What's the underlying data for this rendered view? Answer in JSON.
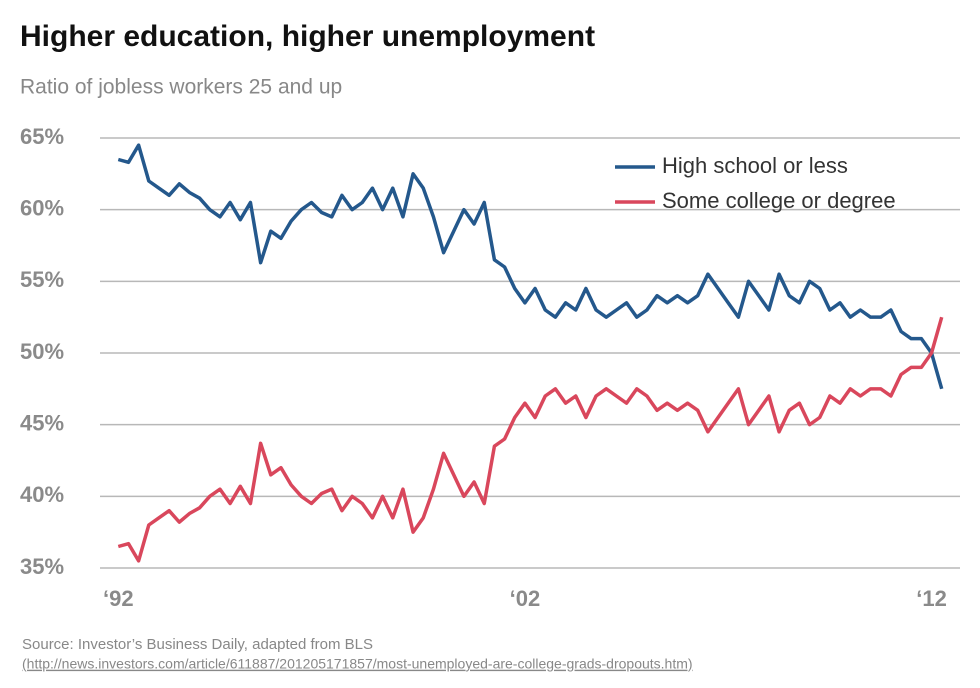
{
  "chart_data": {
    "type": "line",
    "title": "Higher education, higher unemployment",
    "subtitle": "Ratio of jobless workers 25 and up",
    "source": "Source: Investor’s Business Daily, adapted from BLS",
    "source_url": "(http://news.investors.com/article/611887/201205171857/most-unemployed-are-college-grads-dropouts.htm)",
    "x": [
      1992,
      1992.25,
      1992.5,
      1992.75,
      1993,
      1993.25,
      1993.5,
      1993.75,
      1994,
      1994.25,
      1994.5,
      1994.75,
      1995,
      1995.25,
      1995.5,
      1995.75,
      1996,
      1996.25,
      1996.5,
      1996.75,
      1997,
      1997.25,
      1997.5,
      1997.75,
      1998,
      1998.25,
      1998.5,
      1998.75,
      1999,
      1999.25,
      1999.5,
      1999.75,
      2000,
      2000.25,
      2000.5,
      2000.75,
      2001,
      2001.25,
      2001.5,
      2001.75,
      2002,
      2002.25,
      2002.5,
      2002.75,
      2003,
      2003.25,
      2003.5,
      2003.75,
      2004,
      2004.25,
      2004.5,
      2004.75,
      2005,
      2005.25,
      2005.5,
      2005.75,
      2006,
      2006.25,
      2006.5,
      2006.75,
      2007,
      2007.25,
      2007.5,
      2007.75,
      2008,
      2008.25,
      2008.5,
      2008.75,
      2009,
      2009.25,
      2009.5,
      2009.75,
      2010,
      2010.25,
      2010.5,
      2010.75,
      2011,
      2011.25,
      2011.5,
      2011.75,
      2012,
      2012.25
    ],
    "series": [
      {
        "name": "High school or less",
        "color": "#24588c",
        "values": [
          63.5,
          63.3,
          64.5,
          62,
          61.5,
          61,
          61.8,
          61.2,
          60.8,
          60,
          59.5,
          60.5,
          59.3,
          60.5,
          56.3,
          58.5,
          58,
          59.2,
          60,
          60.5,
          59.8,
          59.5,
          61,
          60,
          60.5,
          61.5,
          60,
          61.5,
          59.5,
          62.5,
          61.5,
          59.5,
          57,
          58.5,
          60,
          59,
          60.5,
          56.5,
          56,
          54.5,
          53.5,
          54.5,
          53,
          52.5,
          53.5,
          53,
          54.5,
          53,
          52.5,
          53,
          53.5,
          52.5,
          53,
          54,
          53.5,
          54,
          53.5,
          54,
          55.5,
          54.5,
          53.5,
          52.5,
          55,
          54,
          53,
          55.5,
          54,
          53.5,
          55,
          54.5,
          53,
          53.5,
          52.5,
          53,
          52.5,
          52.5,
          53,
          51.5,
          51,
          51,
          50,
          47.5
        ]
      },
      {
        "name": "Some college or degree",
        "color": "#d9475c",
        "values": [
          36.5,
          36.7,
          35.5,
          38,
          38.5,
          39,
          38.2,
          38.8,
          39.2,
          40,
          40.5,
          39.5,
          40.7,
          39.5,
          43.7,
          41.5,
          42,
          40.8,
          40,
          39.5,
          40.2,
          40.5,
          39,
          40,
          39.5,
          38.5,
          40,
          38.5,
          40.5,
          37.5,
          38.5,
          40.5,
          43,
          41.5,
          40,
          41,
          39.5,
          43.5,
          44,
          45.5,
          46.5,
          45.5,
          47,
          47.5,
          46.5,
          47,
          45.5,
          47,
          47.5,
          47,
          46.5,
          47.5,
          47,
          46,
          46.5,
          46,
          46.5,
          46,
          44.5,
          45.5,
          46.5,
          47.5,
          45,
          46,
          47,
          44.5,
          46,
          46.5,
          45,
          45.5,
          47,
          46.5,
          47.5,
          47,
          47.5,
          47.5,
          47,
          48.5,
          49,
          49,
          50,
          52.5
        ]
      }
    ],
    "xlim": [
      1991.55,
      2012.7
    ],
    "xticks": [
      {
        "value": 1992,
        "label": "‘92"
      },
      {
        "value": 2002,
        "label": "‘02"
      },
      {
        "value": 2012,
        "label": "‘12"
      }
    ],
    "ylim": [
      35,
      65
    ],
    "yticks": [
      {
        "value": 35,
        "label": "35%"
      },
      {
        "value": 40,
        "label": "40%"
      },
      {
        "value": 45,
        "label": "45%"
      },
      {
        "value": 50,
        "label": "50%"
      },
      {
        "value": 55,
        "label": "55%"
      },
      {
        "value": 60,
        "label": "60%"
      },
      {
        "value": 65,
        "label": "65%"
      }
    ],
    "grid": true
  }
}
